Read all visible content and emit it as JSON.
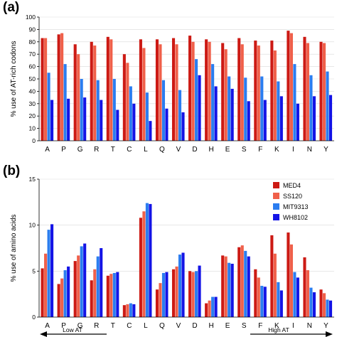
{
  "series_colors": [
    "#cc1a14",
    "#f0604a",
    "#2b7df0",
    "#1414e6"
  ],
  "chart_data": [
    {
      "panel": "(a)",
      "type": "bar",
      "ylabel": "% use of AT-rich codons",
      "ylim": [
        0,
        100
      ],
      "yticks": [
        0,
        10,
        20,
        30,
        40,
        50,
        60,
        70,
        80,
        90,
        100
      ],
      "grid": true,
      "categories": [
        "A",
        "P",
        "G",
        "R",
        "T",
        "C",
        "L",
        "Q",
        "V",
        "D",
        "H",
        "E",
        "S",
        "F",
        "K",
        "I",
        "N",
        "Y"
      ],
      "series": [
        {
          "name": "MED4",
          "values": [
            83,
            86,
            78,
            80,
            84,
            70,
            82,
            82,
            83,
            85,
            82,
            79,
            83,
            81,
            81,
            89,
            84,
            80
          ]
        },
        {
          "name": "SS120",
          "values": [
            83,
            87,
            70,
            77,
            82,
            63,
            75,
            78,
            78,
            80,
            80,
            74,
            78,
            77,
            73,
            87,
            79,
            79
          ]
        },
        {
          "name": "MIT9313",
          "values": [
            55,
            62,
            50,
            49,
            50,
            44,
            39,
            49,
            41,
            66,
            62,
            52,
            51,
            52,
            48,
            62,
            53,
            56
          ]
        },
        {
          "name": "WH8102",
          "values": [
            33,
            34,
            35,
            33,
            25,
            30,
            16,
            26,
            23,
            53,
            44,
            42,
            32,
            33,
            36,
            30,
            36,
            37
          ]
        }
      ]
    },
    {
      "panel": "(b)",
      "type": "bar",
      "ylabel": "% use of amino acids",
      "ylim": [
        0,
        15
      ],
      "yticks": [
        0,
        5,
        10,
        15
      ],
      "grid": true,
      "categories": [
        "A",
        "P",
        "G",
        "R",
        "T",
        "C",
        "L",
        "Q",
        "V",
        "D",
        "H",
        "E",
        "S",
        "F",
        "K",
        "I",
        "N",
        "Y"
      ],
      "legend_position": "top-right",
      "series": [
        {
          "name": "MED4",
          "values": [
            5.3,
            3.6,
            6.1,
            4.0,
            4.5,
            1.3,
            10.8,
            3.0,
            5.2,
            5.0,
            1.5,
            6.7,
            7.6,
            5.2,
            8.9,
            9.2,
            6.5,
            3.0
          ]
        },
        {
          "name": "SS120",
          "values": [
            6.9,
            4.2,
            6.7,
            5.2,
            4.7,
            1.4,
            11.5,
            3.7,
            5.5,
            4.9,
            1.8,
            6.6,
            7.8,
            4.3,
            6.9,
            7.9,
            5.1,
            2.6
          ]
        },
        {
          "name": "MIT9313",
          "values": [
            9.5,
            5.1,
            7.7,
            6.6,
            4.8,
            1.5,
            12.4,
            4.8,
            6.8,
            5.0,
            2.2,
            5.9,
            7.2,
            3.4,
            3.8,
            4.9,
            3.2,
            1.9
          ]
        },
        {
          "name": "WH8102",
          "values": [
            10.1,
            5.5,
            8.0,
            7.5,
            4.9,
            1.4,
            12.3,
            4.9,
            7.0,
            5.6,
            2.2,
            5.8,
            6.6,
            3.3,
            2.9,
            4.3,
            2.7,
            1.8
          ]
        }
      ],
      "annotations": {
        "left": "Low AT",
        "right": "High AT"
      }
    }
  ]
}
